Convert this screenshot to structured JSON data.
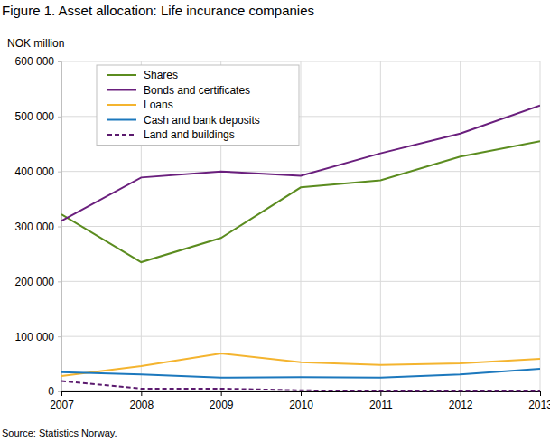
{
  "chart_data": {
    "type": "line",
    "title": "Figure 1. Asset allocation: Life incurance companies",
    "y_label": "NOK million",
    "source": "Source: Statistics Norway.",
    "x": [
      2007,
      2008,
      2009,
      2010,
      2011,
      2012,
      2013
    ],
    "xlim": [
      2007,
      2013
    ],
    "xticks": [
      2007,
      2008,
      2009,
      2010,
      2011,
      2012,
      2013
    ],
    "ylim": [
      0,
      600000
    ],
    "yticks": [
      0,
      {
        "value": 100000,
        "label": "100 000"
      },
      {
        "value": 200000,
        "label": "200 000"
      },
      {
        "value": 300000,
        "label": "300 000"
      },
      {
        "value": 400000,
        "label": "400 000"
      },
      {
        "value": 500000,
        "label": "500 000"
      },
      {
        "value": 600000,
        "label": "600 000"
      }
    ],
    "grid": true,
    "legend": "upper left",
    "series": [
      {
        "name": "Shares",
        "color": "#5b8c1f",
        "line_style": "solid",
        "values": [
          322000,
          235000,
          279000,
          371000,
          384000,
          427000,
          455000
        ]
      },
      {
        "name": "Bonds and certificates",
        "color": "#6a1f7d",
        "line_style": "solid",
        "values": [
          310000,
          389000,
          400000,
          392000,
          433000,
          469000,
          520000
        ]
      },
      {
        "name": "Loans",
        "color": "#f4b42f",
        "line_style": "solid",
        "values": [
          28000,
          46000,
          69000,
          53000,
          48000,
          51000,
          59000
        ]
      },
      {
        "name": "Cash and bank deposits",
        "color": "#1c78bd",
        "line_style": "solid",
        "values": [
          35000,
          31000,
          25000,
          26000,
          25000,
          31000,
          41000
        ]
      },
      {
        "name": "Land and buildings",
        "color": "#5b1a6e",
        "line_style": "dashed",
        "values": [
          19000,
          5000,
          5000,
          2000,
          1000,
          1000,
          1000
        ]
      }
    ]
  }
}
